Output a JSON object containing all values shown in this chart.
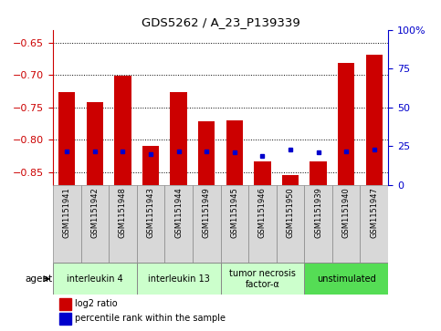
{
  "title": "GDS5262 / A_23_P139339",
  "samples": [
    "GSM1151941",
    "GSM1151942",
    "GSM1151948",
    "GSM1151943",
    "GSM1151944",
    "GSM1151949",
    "GSM1151945",
    "GSM1151946",
    "GSM1151950",
    "GSM1151939",
    "GSM1151940",
    "GSM1151947"
  ],
  "log2_ratios": [
    -0.726,
    -0.742,
    -0.701,
    -0.81,
    -0.726,
    -0.772,
    -0.77,
    -0.834,
    -0.855,
    -0.833,
    -0.681,
    -0.668
  ],
  "percentile_ranks": [
    22,
    22,
    22,
    20,
    22,
    22,
    21,
    19,
    23,
    21,
    22,
    23
  ],
  "agents": [
    {
      "label": "interleukin 4",
      "start": 0,
      "end": 3,
      "color": "#ccffcc"
    },
    {
      "label": "interleukin 13",
      "start": 3,
      "end": 6,
      "color": "#ccffcc"
    },
    {
      "label": "tumor necrosis\nfactor-α",
      "start": 6,
      "end": 9,
      "color": "#ccffcc"
    },
    {
      "label": "unstimulated",
      "start": 9,
      "end": 12,
      "color": "#55dd55"
    }
  ],
  "ylim_left": [
    -0.87,
    -0.63
  ],
  "ylim_right": [
    0,
    100
  ],
  "yticks_left": [
    -0.85,
    -0.8,
    -0.75,
    -0.7,
    -0.65
  ],
  "yticks_right": [
    0,
    25,
    50,
    75,
    100
  ],
  "bar_color": "#cc0000",
  "dot_color": "#0000cc",
  "cell_bg": "#d8d8d8",
  "plot_bg": "#ffffff",
  "legend_bar_label": "log2 ratio",
  "legend_dot_label": "percentile rank within the sample",
  "agent_label": "agent"
}
